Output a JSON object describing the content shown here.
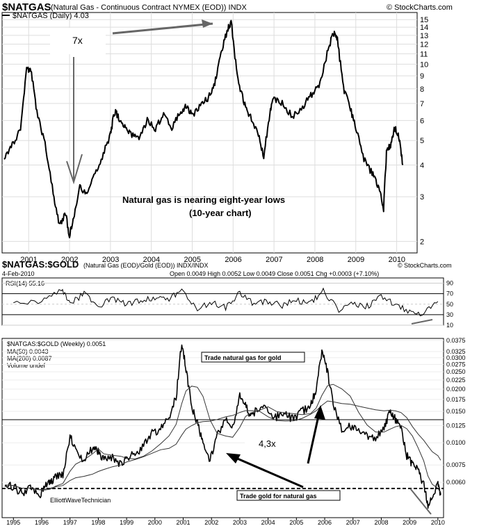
{
  "top_chart": {
    "symbol": "$NATGAS",
    "title_rest": "(Natural Gas - Continuous Contract NYMEX (EOD)) INDX",
    "watermark": "© StockCharts.com",
    "legend": "$NATGAS (Daily) 4.03",
    "annotation_line1": "Natural gas is nearing eight-year lows",
    "annotation_line2": "(10-year chart)",
    "label_7x": "7x"
  },
  "ratio_header": {
    "symbol": "$NATGAS:$GOLD",
    "title_rest": "(Natural Gas (EOD)/Gold (EOD)) INDX/INDX",
    "watermark": "© StockCharts.com",
    "date": "4-Feb-2010",
    "ohlc": "Open 0.0049  High 0.0052  Low 0.0049  Close 0.0051  Chg +0.0003 (+7.10%)"
  },
  "rsi_panel": {
    "label": "RSI(14) 55.16"
  },
  "ratio_chart": {
    "legend_main": "$NATGAS:$GOLD (Weekly) 0.0051",
    "legend_ma50": "MA(50) 0.0043",
    "legend_ma200": "MA(200) 0.0087",
    "legend_volume": "Volume undef",
    "box_top": "Trade natural gas for gold",
    "box_bottom": "Trade gold for natural gas",
    "label_43x": "4,3x",
    "credit": "ElliottWaveTechnician"
  },
  "chart_data": [
    {
      "type": "line",
      "title": "$NATGAS (Daily)",
      "yscale": "log",
      "ylim": [
        1.8,
        16
      ],
      "y_ticks": [
        2,
        3,
        4,
        5,
        6,
        7,
        8,
        9,
        10,
        11,
        12,
        13,
        14,
        15
      ],
      "x_ticks": [
        "2001",
        "2002",
        "2003",
        "2004",
        "2005",
        "2006",
        "2007",
        "2008",
        "2009",
        "2010"
      ],
      "x": [
        2000.4,
        2000.6,
        2000.8,
        2000.95,
        2001.05,
        2001.2,
        2001.4,
        2001.6,
        2001.75,
        2001.9,
        2002.0,
        2002.1,
        2002.25,
        2002.4,
        2002.6,
        2002.8,
        2003.0,
        2003.1,
        2003.2,
        2003.35,
        2003.5,
        2003.7,
        2003.9,
        2004.1,
        2004.3,
        2004.5,
        2004.7,
        2004.85,
        2005.0,
        2005.2,
        2005.4,
        2005.55,
        2005.7,
        2005.85,
        2005.95,
        2006.1,
        2006.25,
        2006.4,
        2006.6,
        2006.75,
        2006.9,
        2007.0,
        2007.2,
        2007.45,
        2007.7,
        2007.9,
        2008.1,
        2008.3,
        2008.45,
        2008.55,
        2008.7,
        2008.85,
        2009.0,
        2009.2,
        2009.4,
        2009.55,
        2009.68,
        2009.75,
        2009.85,
        2009.95,
        2010.05,
        2010.15
      ],
      "values": [
        4.3,
        4.8,
        5.5,
        9.5,
        9.6,
        6.5,
        4.8,
        3.1,
        2.3,
        2.6,
        2.1,
        2.5,
        3.3,
        3.1,
        3.6,
        4.3,
        5.3,
        6.5,
        6.2,
        5.6,
        5.3,
        5.0,
        6.0,
        5.6,
        6.3,
        5.6,
        6.5,
        6.8,
        6.3,
        6.8,
        7.4,
        8.5,
        11.0,
        13.5,
        14.8,
        9.0,
        7.2,
        6.3,
        5.4,
        4.3,
        6.5,
        7.3,
        7.0,
        6.2,
        6.8,
        7.5,
        8.2,
        11.0,
        13.3,
        12.5,
        8.0,
        6.8,
        5.6,
        4.2,
        3.7,
        3.3,
        2.7,
        4.5,
        4.8,
        5.6,
        5.2,
        4.0
      ]
    },
    {
      "type": "line",
      "title": "RSI(14)",
      "ylim": [
        10,
        100
      ],
      "y_ticks": [
        10,
        30,
        50,
        70,
        90
      ],
      "x": [
        1995.0,
        1996.0,
        1996.7,
        1997.0,
        1997.5,
        1998.0,
        1998.5,
        1999.0,
        1999.5,
        2000.0,
        2000.5,
        2000.95,
        2001.5,
        2002.0,
        2002.5,
        2003.0,
        2003.5,
        2004.0,
        2004.5,
        2005.0,
        2005.5,
        2005.95,
        2006.5,
        2007.0,
        2007.5,
        2008.0,
        2008.5,
        2009.0,
        2009.5,
        2010.0
      ],
      "values": [
        50,
        55,
        78,
        52,
        70,
        45,
        62,
        50,
        58,
        62,
        58,
        78,
        42,
        52,
        44,
        72,
        50,
        55,
        48,
        58,
        52,
        75,
        40,
        52,
        46,
        65,
        50,
        35,
        32,
        55
      ]
    },
    {
      "type": "line",
      "title": "$NATGAS:$GOLD (Weekly)",
      "yscale": "log",
      "ylim": [
        0.0038,
        0.0385
      ],
      "y_ticks": [
        0.006,
        0.0075,
        0.01,
        0.0125,
        0.015,
        0.0175,
        0.02,
        0.0225,
        0.025,
        0.0275,
        0.03,
        0.0325,
        0.0375
      ],
      "x_ticks": [
        "1995",
        "1996",
        "1997",
        "1998",
        "1999",
        "2000",
        "2001",
        "2002",
        "2003",
        "2004",
        "2005",
        "2006",
        "2007",
        "2008",
        "2009",
        "2010"
      ],
      "x": [
        1994.7,
        1995.0,
        1995.3,
        1995.6,
        1995.9,
        1996.1,
        1996.3,
        1996.5,
        1996.75,
        1997.0,
        1997.2,
        1997.5,
        1997.8,
        1998.0,
        1998.2,
        1998.5,
        1998.8,
        1999.0,
        1999.3,
        1999.6,
        1999.9,
        2000.2,
        2000.5,
        2000.75,
        2000.95,
        2001.1,
        2001.3,
        2001.5,
        2001.7,
        2001.95,
        2002.2,
        2002.5,
        2002.75,
        2003.0,
        2003.2,
        2003.4,
        2003.7,
        2004.0,
        2004.3,
        2004.6,
        2004.9,
        2005.2,
        2005.5,
        2005.7,
        2005.9,
        2006.1,
        2006.3,
        2006.6,
        2006.9,
        2007.2,
        2007.5,
        2007.8,
        2008.1,
        2008.3,
        2008.5,
        2008.7,
        2008.9,
        2009.1,
        2009.3,
        2009.5,
        2009.65,
        2009.8,
        2010.0,
        2010.1
      ],
      "values": [
        0.0058,
        0.0057,
        0.0052,
        0.0056,
        0.005,
        0.0057,
        0.006,
        0.0064,
        0.0066,
        0.011,
        0.009,
        0.008,
        0.0094,
        0.009,
        0.008,
        0.0082,
        0.0075,
        0.0083,
        0.0086,
        0.0096,
        0.0115,
        0.0118,
        0.014,
        0.018,
        0.037,
        0.026,
        0.016,
        0.013,
        0.01,
        0.008,
        0.011,
        0.0135,
        0.012,
        0.019,
        0.016,
        0.014,
        0.016,
        0.015,
        0.014,
        0.0145,
        0.0135,
        0.015,
        0.016,
        0.02,
        0.033,
        0.025,
        0.0165,
        0.012,
        0.0125,
        0.0115,
        0.011,
        0.0105,
        0.012,
        0.015,
        0.0135,
        0.012,
        0.0085,
        0.0075,
        0.007,
        0.0058,
        0.0045,
        0.005,
        0.0058,
        0.0051
      ]
    }
  ]
}
